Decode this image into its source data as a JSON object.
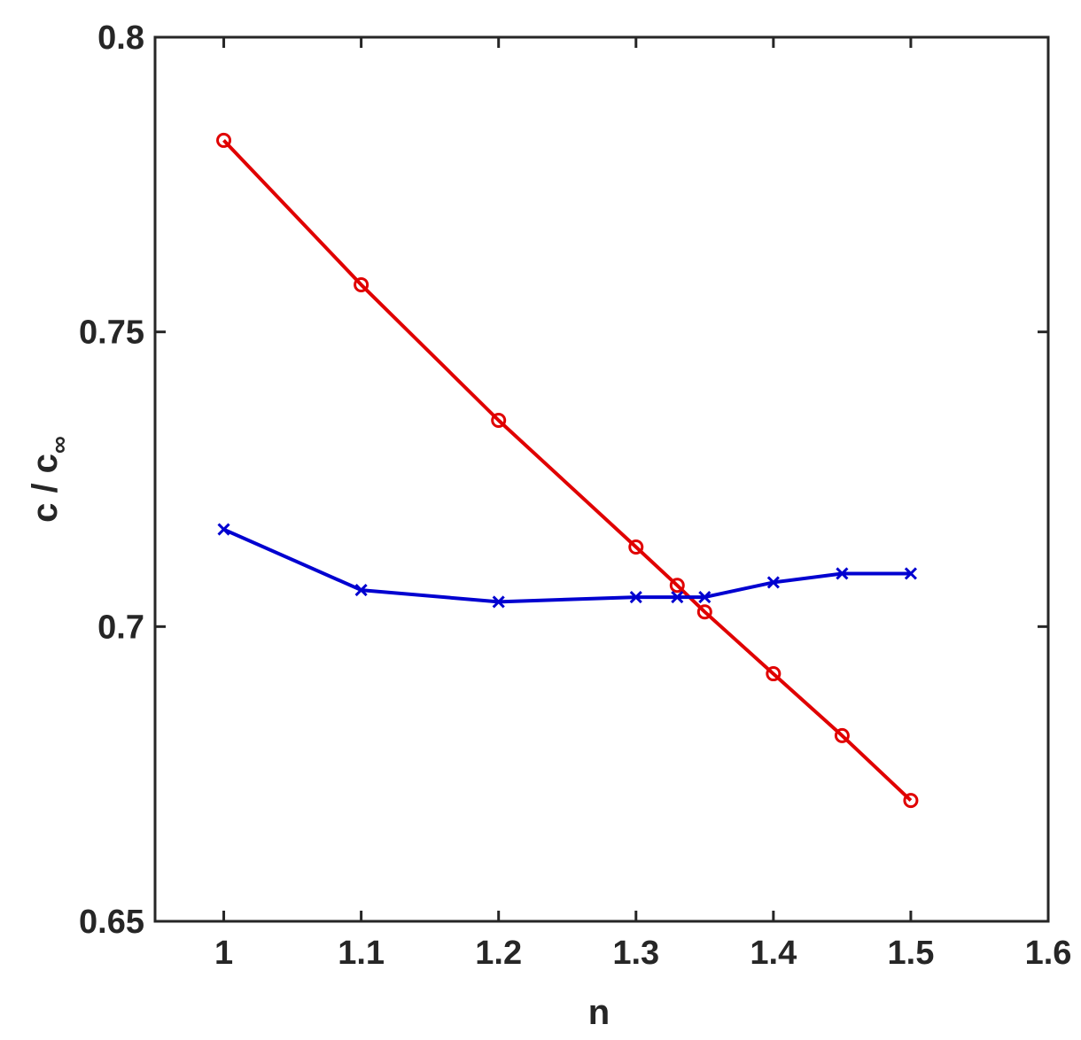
{
  "chart_data": {
    "type": "line",
    "title": "",
    "xlabel": "n",
    "ylabel": "c / c",
    "ylabel_sub": "∞",
    "xlim": [
      0.95,
      1.6
    ],
    "ylim": [
      0.65,
      0.8
    ],
    "xticks": [
      1,
      1.1,
      1.2,
      1.3,
      1.4,
      1.5,
      1.6
    ],
    "xtick_labels": [
      "1",
      "1.1",
      "1.2",
      "1.3",
      "1.4",
      "1.5",
      "1.6"
    ],
    "yticks": [
      0.65,
      0.7,
      0.75,
      0.8
    ],
    "ytick_labels": [
      "0.65",
      "0.7",
      "0.75",
      "0.8"
    ],
    "grid": false,
    "series": [
      {
        "color": "#e00000",
        "marker": "circle",
        "x": [
          1,
          1.1,
          1.2,
          1.3,
          1.33,
          1.35,
          1.4,
          1.45,
          1.5
        ],
        "y": [
          0.7825,
          0.758,
          0.735,
          0.7135,
          0.707,
          0.7025,
          0.692,
          0.6815,
          0.6705
        ]
      },
      {
        "color": "#0000d0",
        "marker": "x",
        "x": [
          1,
          1.1,
          1.2,
          1.3,
          1.33,
          1.35,
          1.4,
          1.45,
          1.5
        ],
        "y": [
          0.7165,
          0.7062,
          0.7042,
          0.705,
          0.705,
          0.705,
          0.7075,
          0.709,
          0.709
        ]
      }
    ]
  }
}
